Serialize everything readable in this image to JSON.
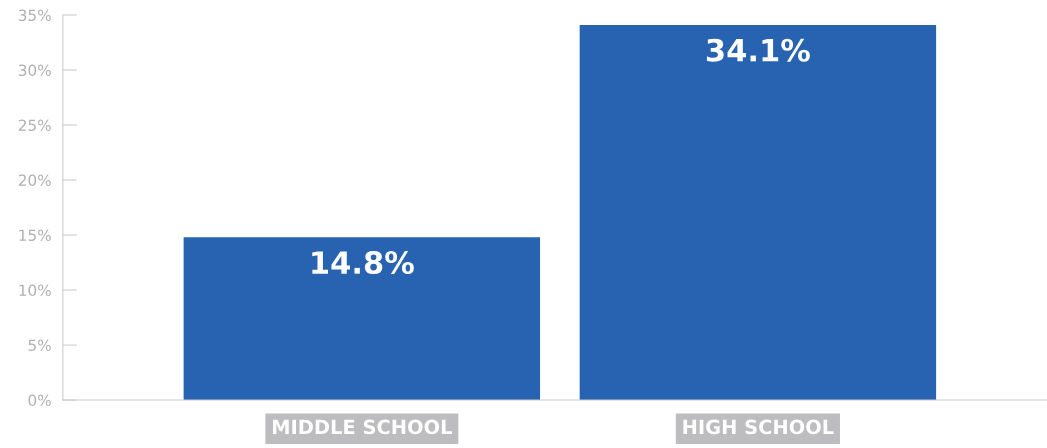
{
  "chart_data": {
    "type": "bar",
    "categories": [
      "MIDDLE SCHOOL",
      "HIGH SCHOOL"
    ],
    "values": [
      14.8,
      34.1
    ],
    "value_labels": [
      "14.8%",
      "34.1%"
    ],
    "color": "#2763b0",
    "ylim": [
      0,
      35
    ],
    "yticks": [
      {
        "value": 0,
        "label": "0%"
      },
      {
        "value": 5,
        "label": "5%"
      },
      {
        "value": 10,
        "label": "10%"
      },
      {
        "value": 15,
        "label": "15%"
      },
      {
        "value": 20,
        "label": "20%"
      },
      {
        "value": 25,
        "label": "25%"
      },
      {
        "value": 30,
        "label": "30%"
      },
      {
        "value": 35,
        "label": "35%"
      }
    ],
    "grid": false,
    "legend": false
  }
}
